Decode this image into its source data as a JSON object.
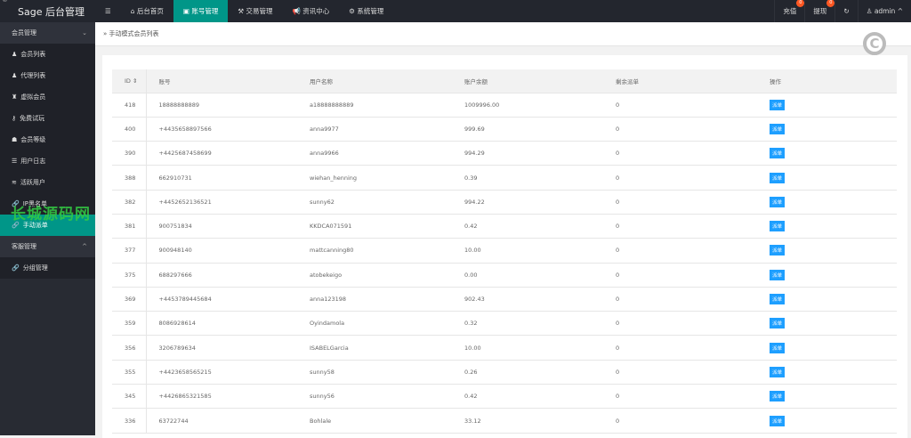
{
  "app": {
    "title": "Sage 后台管理",
    "corner_mark": "©"
  },
  "topnav": {
    "menu_icon": "hamburger-icon",
    "items": [
      {
        "label": "后台首页",
        "icon": "home-icon"
      },
      {
        "label": "账号管理",
        "icon": "id-card-icon",
        "active": true
      },
      {
        "label": "交易管理",
        "icon": "gavel-icon"
      },
      {
        "label": "资讯中心",
        "icon": "bullhorn-icon"
      },
      {
        "label": "系统管理",
        "icon": "cogs-icon"
      }
    ],
    "recharge": {
      "label": "充值",
      "badge": "0"
    },
    "withdraw": {
      "label": "提现",
      "badge": "0"
    },
    "user": "admin"
  },
  "sidebar": {
    "group1": "会员管理",
    "items": [
      {
        "label": "会员列表",
        "icon": "user-icon"
      },
      {
        "label": "代理列表",
        "icon": "users-icon"
      },
      {
        "label": "虚拟会员",
        "icon": "user-secret-icon"
      },
      {
        "label": "免费试玩",
        "icon": "key-icon"
      },
      {
        "label": "会员等级",
        "icon": "level-icon"
      },
      {
        "label": "用户日志",
        "icon": "log-icon"
      },
      {
        "label": "活跃用户",
        "icon": "wifi-icon"
      },
      {
        "label": "IP黑名单",
        "icon": "link-icon"
      },
      {
        "label": "手动派单",
        "icon": "link-icon",
        "active": true
      }
    ],
    "group2": "客服管理",
    "items2": [
      {
        "label": "分组管理",
        "icon": "link-icon"
      }
    ]
  },
  "breadcrumb": "手动模式会员列表",
  "watermark": "长城源码网",
  "table": {
    "headers": [
      "ID",
      "账号",
      "用户名称",
      "账户余额",
      "剩余派单",
      "操作"
    ],
    "action_label": "派单",
    "rows": [
      [
        "418",
        "18888888889",
        "a18888888889",
        "1009996.00",
        "0"
      ],
      [
        "400",
        "+4435658897566",
        "anna9977",
        "999.69",
        "0"
      ],
      [
        "390",
        "+4425687458699",
        "anna9966",
        "994.29",
        "0"
      ],
      [
        "388",
        "662910731",
        "wiehan_henning",
        "0.39",
        "0"
      ],
      [
        "382",
        "+4452652136521",
        "sunny62",
        "994.22",
        "0"
      ],
      [
        "381",
        "900751834",
        "KKDCA071591",
        "0.42",
        "0"
      ],
      [
        "377",
        "900948140",
        "mattcanning80",
        "10.00",
        "0"
      ],
      [
        "375",
        "688297666",
        "atobekeigo",
        "0.00",
        "0"
      ],
      [
        "369",
        "+4453789445684",
        "anna123198",
        "902.43",
        "0"
      ],
      [
        "359",
        "8086928614",
        "Oyindamola",
        "0.32",
        "0"
      ],
      [
        "356",
        "3206789634",
        "ISABELGarcia",
        "10.00",
        "0"
      ],
      [
        "355",
        "+4423658565215",
        "sunny58",
        "0.26",
        "0"
      ],
      [
        "345",
        "+4426865321585",
        "sunny56",
        "0.42",
        "0"
      ],
      [
        "336",
        "63722744",
        "Bohlale",
        "33.12",
        "0"
      ]
    ]
  }
}
